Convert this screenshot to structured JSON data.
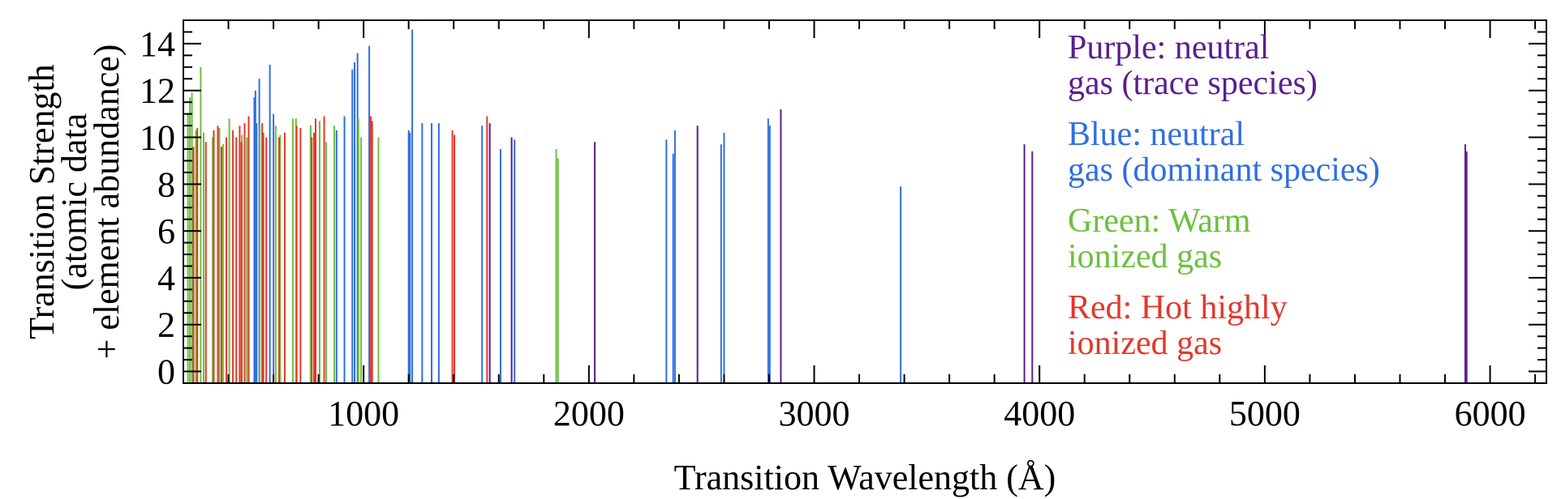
{
  "chart_data": {
    "type": "bar",
    "xlabel": "Transition Wavelength (Å)",
    "ylabel_lines": [
      "Transition Strength",
      "(atomic data",
      "+ element abundance)"
    ],
    "xlim": [
      200,
      6250
    ],
    "ylim": [
      -0.5,
      15
    ],
    "x_ticks": [
      1000,
      2000,
      3000,
      4000,
      5000,
      6000
    ],
    "y_ticks": [
      0,
      2,
      4,
      6,
      8,
      10,
      12,
      14
    ],
    "x_tick_labels": [
      "1000",
      "2000",
      "3000",
      "4000",
      "5000",
      "6000"
    ],
    "y_tick_labels": [
      "0",
      "2",
      "4",
      "6",
      "8",
      "10",
      "12",
      "14"
    ],
    "colors": {
      "purple": "#5b1e91",
      "blue": "#2f6fe0",
      "green": "#6cc03f",
      "red": "#e2382b"
    },
    "legend": [
      {
        "series": "purple",
        "lines": [
          "Purple: neutral",
          "gas (trace species)"
        ]
      },
      {
        "series": "blue",
        "lines": [
          "Blue: neutral",
          "gas (dominant species)"
        ]
      },
      {
        "series": "green",
        "lines": [
          "Green: Warm",
          "ionized gas"
        ]
      },
      {
        "series": "red",
        "lines": [
          "Red: Hot highly",
          "ionized gas"
        ]
      }
    ],
    "series": [
      {
        "name": "Purple: neutral gas (trace species)",
        "color_key": "purple",
        "points": [
          [
            1560,
            10.6
          ],
          [
            1657,
            10.0
          ],
          [
            2026,
            9.8
          ],
          [
            2482,
            10.5
          ],
          [
            2852,
            11.2
          ],
          [
            3933,
            9.7
          ],
          [
            3968,
            9.4
          ],
          [
            5890,
            9.7
          ],
          [
            5896,
            9.4
          ]
        ]
      },
      {
        "name": "Blue: neutral gas (dominant species)",
        "color_key": "blue",
        "points": [
          [
            515,
            11.7
          ],
          [
            520,
            12.0
          ],
          [
            525,
            10.6
          ],
          [
            537,
            12.5
          ],
          [
            584,
            13.1
          ],
          [
            600,
            11.0
          ],
          [
            765,
            10.5
          ],
          [
            880,
            10.3
          ],
          [
            915,
            10.9
          ],
          [
            950,
            12.9
          ],
          [
            960,
            13.2
          ],
          [
            973,
            13.6
          ],
          [
            1025,
            13.9
          ],
          [
            1200,
            10.3
          ],
          [
            1206,
            10.2
          ],
          [
            1216,
            14.6
          ],
          [
            1260,
            10.6
          ],
          [
            1302,
            10.6
          ],
          [
            1334,
            10.6
          ],
          [
            1526,
            10.5
          ],
          [
            1608,
            9.5
          ],
          [
            1670,
            9.9
          ],
          [
            2344,
            9.9
          ],
          [
            2374,
            9.3
          ],
          [
            2382,
            10.3
          ],
          [
            2587,
            9.7
          ],
          [
            2600,
            10.2
          ],
          [
            2796,
            10.8
          ],
          [
            2803,
            10.5
          ],
          [
            3384,
            7.9
          ]
        ]
      },
      {
        "name": "Green: Warm ionized gas",
        "color_key": "green",
        "points": [
          [
            220,
            11.0
          ],
          [
            229,
            11.7
          ],
          [
            238,
            11.9
          ],
          [
            256,
            10.3
          ],
          [
            277,
            13.0
          ],
          [
            290,
            10.2
          ],
          [
            330,
            10.0
          ],
          [
            360,
            10.4
          ],
          [
            376,
            9.7
          ],
          [
            404,
            10.8
          ],
          [
            460,
            10.1
          ],
          [
            482,
            10.0
          ],
          [
            539,
            10.5
          ],
          [
            610,
            10.5
          ],
          [
            630,
            10.1
          ],
          [
            686,
            10.8
          ],
          [
            700,
            10.8
          ],
          [
            765,
            10.5
          ],
          [
            805,
            10.7
          ],
          [
            834,
            9.8
          ],
          [
            870,
            10.5
          ],
          [
            977,
            10.8
          ],
          [
            989,
            10.0
          ],
          [
            1066,
            10.0
          ],
          [
            1855,
            9.5
          ],
          [
            1863,
            9.1
          ]
        ]
      },
      {
        "name": "Red: Hot highly ionized gas",
        "color_key": "red",
        "points": [
          [
            245,
            9.6
          ],
          [
            262,
            10.4
          ],
          [
            300,
            9.8
          ],
          [
            335,
            10.3
          ],
          [
            353,
            10.5
          ],
          [
            369,
            9.6
          ],
          [
            391,
            10.0
          ],
          [
            420,
            10.3
          ],
          [
            435,
            10.0
          ],
          [
            450,
            10.5
          ],
          [
            458,
            9.8
          ],
          [
            472,
            10.6
          ],
          [
            490,
            10.9
          ],
          [
            550,
            10.6
          ],
          [
            555,
            10.2
          ],
          [
            568,
            10.0
          ],
          [
            625,
            10.0
          ],
          [
            650,
            10.2
          ],
          [
            703,
            10.5
          ],
          [
            720,
            10.4
          ],
          [
            770,
            10.0
          ],
          [
            780,
            10.2
          ],
          [
            787,
            10.8
          ],
          [
            825,
            10.9
          ],
          [
            1032,
            10.9
          ],
          [
            1038,
            10.7
          ],
          [
            1394,
            10.3
          ],
          [
            1403,
            10.1
          ],
          [
            1548,
            10.9
          ]
        ]
      }
    ]
  }
}
